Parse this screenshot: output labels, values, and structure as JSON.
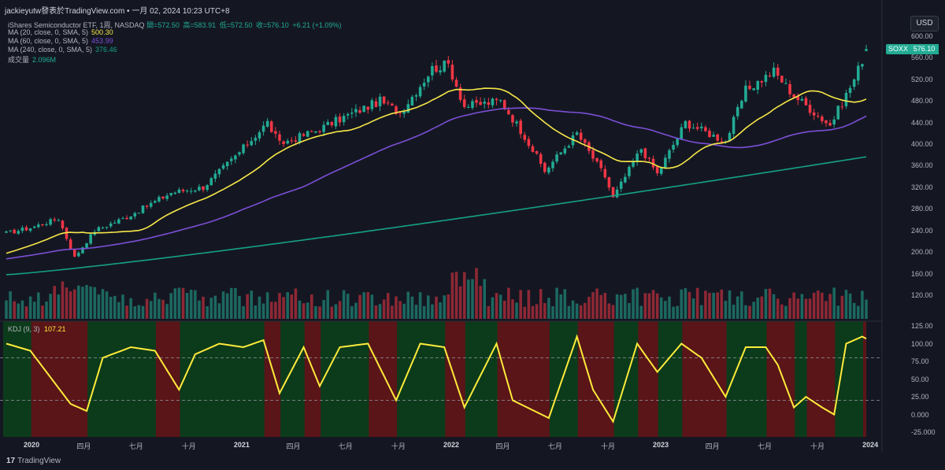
{
  "header": {
    "author_line": "jackieyutw發表於TradingView.com • 一月 02, 2024 10:23 UTC+8"
  },
  "legend": {
    "symbol_info": "iShares Semiconductor ETF, 1周, NASDAQ",
    "open_label": "開=572.50",
    "high_label": "高=583.91",
    "low_label": "低=572.50",
    "close_label": "收=576.10",
    "change_label": "+6.21 (+1.09%)",
    "ma20_label": "MA (20, close, 0, SMA, 5)",
    "ma20_value": "500.30",
    "ma60_label": "MA (60, close, 0, SMA, 5)",
    "ma60_value": "453.99",
    "ma240_label": "MA (240, close, 0, SMA, 5)",
    "ma240_value": "376.46",
    "volume_label": "成交量",
    "volume_value": "2.096M"
  },
  "price_axis": {
    "currency": "USD",
    "symbol": "SOXX",
    "last_price": "576.10",
    "ticks": [
      "600.00",
      "560.00",
      "520.00",
      "480.00",
      "440.00",
      "400.00",
      "360.00",
      "320.00",
      "280.00",
      "240.00",
      "200.00",
      "160.00",
      "120.00"
    ]
  },
  "kdj": {
    "label": "KDJ (9, 3)",
    "value": "107.21",
    "ticks": [
      "125.00",
      "100.00",
      "75.00",
      "50.00",
      "25.00",
      "0.000",
      "-25.000"
    ]
  },
  "time_axis": {
    "ticks": [
      "2020",
      "四月",
      "七月",
      "十月",
      "2021",
      "四月",
      "七月",
      "十月",
      "2022",
      "四月",
      "七月",
      "十月",
      "2023",
      "四月",
      "七月",
      "十月",
      "2024"
    ]
  },
  "brand": {
    "name": "TradingView"
  },
  "colors": {
    "up": "#22ab94",
    "down": "#f23645",
    "ma20": "#f7e748",
    "ma60": "#7b4fd6",
    "ma240": "#16a085",
    "kdj": "#ffeb3b",
    "bg_green": "#0c3b1b",
    "bg_red": "#5a1518"
  },
  "chart_data": {
    "type": "candlestick",
    "title": "iShares Semiconductor ETF, 1周, NASDAQ",
    "ylim": [
      120,
      600
    ],
    "weekly_close_keypoints": [
      [
        "2019-11-18",
        235
      ],
      [
        "2019-12-30",
        245
      ],
      [
        "2020-02-17",
        262
      ],
      [
        "2020-03-16",
        190
      ],
      [
        "2020-04-20",
        240
      ],
      [
        "2020-06-15",
        265
      ],
      [
        "2020-08-31",
        310
      ],
      [
        "2020-10-26",
        320
      ],
      [
        "2020-12-28",
        385
      ],
      [
        "2021-02-15",
        440
      ],
      [
        "2021-03-08",
        400
      ],
      [
        "2021-05-10",
        425
      ],
      [
        "2021-06-28",
        450
      ],
      [
        "2021-08-30",
        480
      ],
      [
        "2021-10-04",
        458
      ],
      [
        "2021-11-29",
        540
      ],
      [
        "2021-12-27",
        548
      ],
      [
        "2022-01-24",
        470
      ],
      [
        "2022-03-28",
        480
      ],
      [
        "2022-05-09",
        415
      ],
      [
        "2022-06-13",
        350
      ],
      [
        "2022-08-08",
        420
      ],
      [
        "2022-09-26",
        340
      ],
      [
        "2022-10-10",
        300
      ],
      [
        "2022-11-28",
        392
      ],
      [
        "2022-12-26",
        345
      ],
      [
        "2023-02-13",
        440
      ],
      [
        "2023-04-24",
        405
      ],
      [
        "2023-05-29",
        500
      ],
      [
        "2023-07-17",
        535
      ],
      [
        "2023-08-21",
        490
      ],
      [
        "2023-10-23",
        435
      ],
      [
        "2023-12-04",
        520
      ],
      [
        "2023-12-25",
        576
      ]
    ],
    "last": {
      "open": 572.5,
      "high": 583.91,
      "low": 572.5,
      "close": 576.1
    },
    "ma20_end": 500.3,
    "ma60_end": 453.99,
    "ma240_end": 376.46,
    "volume_last": "2.096M",
    "kdj_ylim": [
      -25,
      125
    ],
    "kdj_end": 107.21,
    "kdj_keypoints": [
      [
        "2019-11-18",
        100
      ],
      [
        "2019-12-30",
        90
      ],
      [
        "2020-01-27",
        60
      ],
      [
        "2020-03-09",
        15
      ],
      [
        "2020-04-06",
        5
      ],
      [
        "2020-05-04",
        80
      ],
      [
        "2020-06-22",
        95
      ],
      [
        "2020-08-03",
        90
      ],
      [
        "2020-09-14",
        35
      ],
      [
        "2020-10-12",
        85
      ],
      [
        "2020-11-23",
        100
      ],
      [
        "2021-01-04",
        95
      ],
      [
        "2021-02-08",
        105
      ],
      [
        "2021-03-08",
        30
      ],
      [
        "2021-04-19",
        95
      ],
      [
        "2021-05-17",
        40
      ],
      [
        "2021-06-21",
        95
      ],
      [
        "2021-08-09",
        100
      ],
      [
        "2021-09-27",
        20
      ],
      [
        "2021-11-08",
        100
      ],
      [
        "2021-12-20",
        95
      ],
      [
        "2022-01-24",
        10
      ],
      [
        "2022-03-21",
        100
      ],
      [
        "2022-04-18",
        20
      ],
      [
        "2022-06-20",
        -5
      ],
      [
        "2022-08-08",
        110
      ],
      [
        "2022-09-05",
        35
      ],
      [
        "2022-10-10",
        -10
      ],
      [
        "2022-11-21",
        100
      ],
      [
        "2022-12-26",
        60
      ],
      [
        "2023-02-06",
        100
      ],
      [
        "2023-03-13",
        80
      ],
      [
        "2023-04-24",
        25
      ],
      [
        "2023-05-29",
        95
      ],
      [
        "2023-07-03",
        95
      ],
      [
        "2023-07-24",
        70
      ],
      [
        "2023-08-21",
        10
      ],
      [
        "2023-09-11",
        25
      ],
      [
        "2023-10-09",
        10
      ],
      [
        "2023-10-30",
        0
      ],
      [
        "2023-11-20",
        100
      ],
      [
        "2023-12-18",
        110
      ],
      [
        "2023-12-25",
        107
      ]
    ]
  }
}
